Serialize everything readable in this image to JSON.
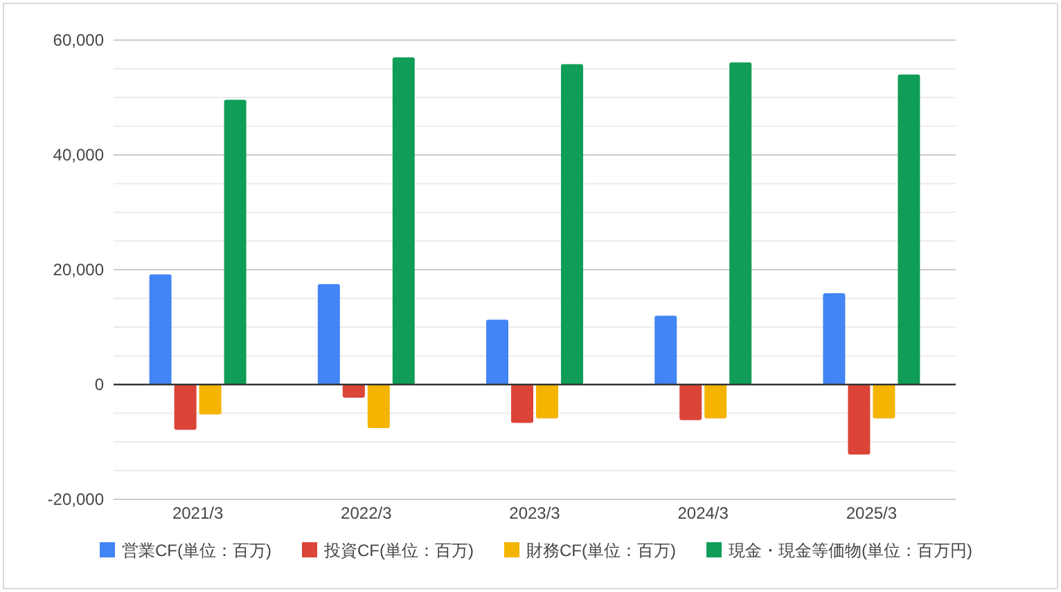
{
  "chart_data": {
    "type": "bar",
    "categories": [
      "2021/3",
      "2022/3",
      "2023/3",
      "2024/3",
      "2025/3"
    ],
    "series": [
      {
        "name": "営業CF(単位：百万)",
        "color": "#4285f4",
        "values": [
          19200,
          17500,
          11300,
          12000,
          15900
        ]
      },
      {
        "name": "投資CF(単位：百万)",
        "color": "#db4437",
        "values": [
          -7900,
          -2300,
          -6700,
          -6200,
          -12200
        ]
      },
      {
        "name": "財務CF(単位：百万)",
        "color": "#f4b400",
        "values": [
          -5200,
          -7600,
          -5900,
          -5900,
          -5900
        ]
      },
      {
        "name": "現金・現金等価物(単位：百万円)",
        "color": "#0f9d58",
        "values": [
          49600,
          57000,
          55800,
          56100,
          54000
        ]
      }
    ],
    "ylim": [
      -20000,
      60000
    ],
    "yticks": [
      {
        "value": -20000,
        "label": "-20,000"
      },
      0,
      {
        "value": 20000,
        "label": "20,000"
      },
      {
        "value": 40000,
        "label": "40,000"
      },
      {
        "value": 60000,
        "label": "60,000"
      }
    ],
    "grid": "y",
    "legend": "bottom"
  }
}
